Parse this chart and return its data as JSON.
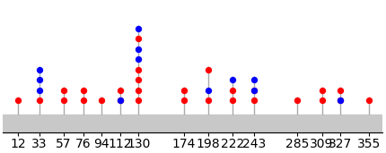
{
  "background_color": "#ffffff",
  "xtick_labels": [
    "12",
    "33",
    "57",
    "76",
    "94",
    "112",
    "130",
    "174",
    "198",
    "222",
    "243",
    "285",
    "309",
    "327",
    "355"
  ],
  "xtick_positions": [
    12,
    33,
    57,
    76,
    94,
    112,
    130,
    174,
    198,
    222,
    243,
    285,
    309,
    327,
    355
  ],
  "lollipops": [
    {
      "x": 12,
      "level": 1,
      "color": "red"
    },
    {
      "x": 33,
      "level": 1,
      "color": "red"
    },
    {
      "x": 33,
      "level": 2,
      "color": "blue"
    },
    {
      "x": 33,
      "level": 3,
      "color": "blue"
    },
    {
      "x": 33,
      "level": 4,
      "color": "blue"
    },
    {
      "x": 57,
      "level": 1,
      "color": "red"
    },
    {
      "x": 57,
      "level": 2,
      "color": "red"
    },
    {
      "x": 76,
      "level": 1,
      "color": "red"
    },
    {
      "x": 76,
      "level": 2,
      "color": "red"
    },
    {
      "x": 94,
      "level": 1,
      "color": "red"
    },
    {
      "x": 112,
      "level": 1,
      "color": "red"
    },
    {
      "x": 112,
      "level": 2,
      "color": "red"
    },
    {
      "x": 112,
      "level": 1,
      "color": "blue"
    },
    {
      "x": 130,
      "level": 1,
      "color": "red"
    },
    {
      "x": 130,
      "level": 2,
      "color": "red"
    },
    {
      "x": 130,
      "level": 3,
      "color": "red"
    },
    {
      "x": 130,
      "level": 4,
      "color": "red"
    },
    {
      "x": 130,
      "level": 5,
      "color": "blue"
    },
    {
      "x": 130,
      "level": 6,
      "color": "blue"
    },
    {
      "x": 130,
      "level": 7,
      "color": "red"
    },
    {
      "x": 130,
      "level": 8,
      "color": "blue"
    },
    {
      "x": 174,
      "level": 1,
      "color": "red"
    },
    {
      "x": 174,
      "level": 2,
      "color": "red"
    },
    {
      "x": 198,
      "level": 1,
      "color": "red"
    },
    {
      "x": 198,
      "level": 2,
      "color": "blue"
    },
    {
      "x": 198,
      "level": 4,
      "color": "red"
    },
    {
      "x": 222,
      "level": 1,
      "color": "red"
    },
    {
      "x": 222,
      "level": 2,
      "color": "red"
    },
    {
      "x": 222,
      "level": 3,
      "color": "blue"
    },
    {
      "x": 243,
      "level": 1,
      "color": "red"
    },
    {
      "x": 243,
      "level": 2,
      "color": "red"
    },
    {
      "x": 243,
      "level": 2,
      "color": "blue"
    },
    {
      "x": 243,
      "level": 3,
      "color": "blue"
    },
    {
      "x": 285,
      "level": 1,
      "color": "red"
    },
    {
      "x": 309,
      "level": 1,
      "color": "red"
    },
    {
      "x": 309,
      "level": 2,
      "color": "red"
    },
    {
      "x": 327,
      "level": 1,
      "color": "red"
    },
    {
      "x": 327,
      "level": 1,
      "color": "blue"
    },
    {
      "x": 327,
      "level": 2,
      "color": "red"
    },
    {
      "x": 355,
      "level": 1,
      "color": "red"
    }
  ],
  "stems": [
    {
      "x": 12,
      "max_level": 1
    },
    {
      "x": 33,
      "max_level": 4
    },
    {
      "x": 57,
      "max_level": 2
    },
    {
      "x": 76,
      "max_level": 2
    },
    {
      "x": 94,
      "max_level": 1
    },
    {
      "x": 112,
      "max_level": 2
    },
    {
      "x": 130,
      "max_level": 8
    },
    {
      "x": 174,
      "max_level": 2
    },
    {
      "x": 198,
      "max_level": 4
    },
    {
      "x": 222,
      "max_level": 3
    },
    {
      "x": 243,
      "max_level": 3
    },
    {
      "x": 285,
      "max_level": 1
    },
    {
      "x": 309,
      "max_level": 2
    },
    {
      "x": 327,
      "max_level": 2
    },
    {
      "x": 355,
      "max_level": 1
    }
  ],
  "xlim": [
    -3,
    368
  ],
  "ylim_bottom": -2.5,
  "ylim_top": 10.5,
  "bar_y_center": -1.2,
  "bar_half_height": 0.85,
  "bar_color": "#c8c8c8",
  "stem_color": "#aaaaaa",
  "stem_linewidth": 1.0,
  "dot_size": 28,
  "unit": 1.0,
  "label_fontsize": 7.0
}
